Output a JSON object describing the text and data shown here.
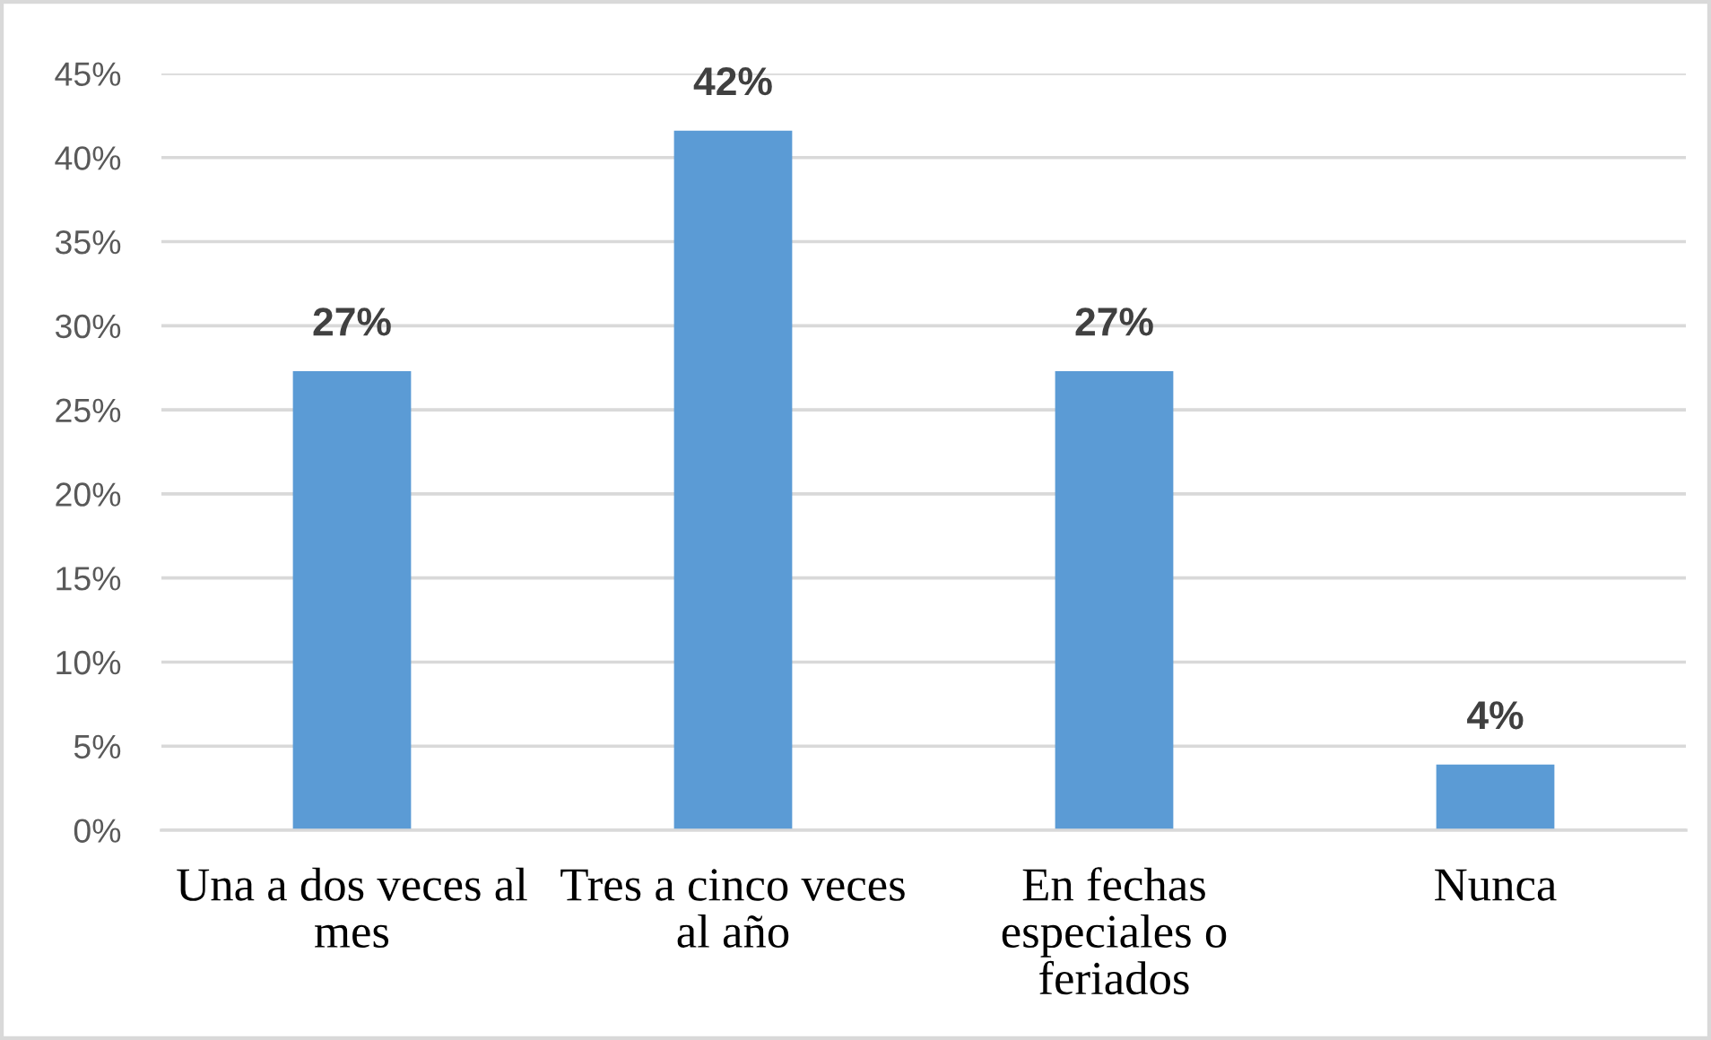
{
  "chart_data": {
    "type": "bar",
    "categories": [
      "Una a dos veces al mes",
      "Tres a cinco veces al año",
      "En fechas especiales o feriados",
      "Nunca"
    ],
    "values": [
      27.3,
      41.6,
      27.3,
      3.9
    ],
    "value_labels": [
      "27%",
      "42%",
      "27%",
      "4%"
    ],
    "color": "#5b9bd5",
    "ylim": [
      0,
      45
    ],
    "yticks": [
      {
        "value": 0,
        "label": "0%"
      },
      {
        "value": 5,
        "label": "5%"
      },
      {
        "value": 10,
        "label": "10%"
      },
      {
        "value": 15,
        "label": "15%"
      },
      {
        "value": 20,
        "label": "20%"
      },
      {
        "value": 25,
        "label": "25%"
      },
      {
        "value": 30,
        "label": "30%"
      },
      {
        "value": 35,
        "label": "35%"
      },
      {
        "value": 40,
        "label": "40%"
      },
      {
        "value": 45,
        "label": "45%"
      }
    ],
    "grid": "y"
  }
}
